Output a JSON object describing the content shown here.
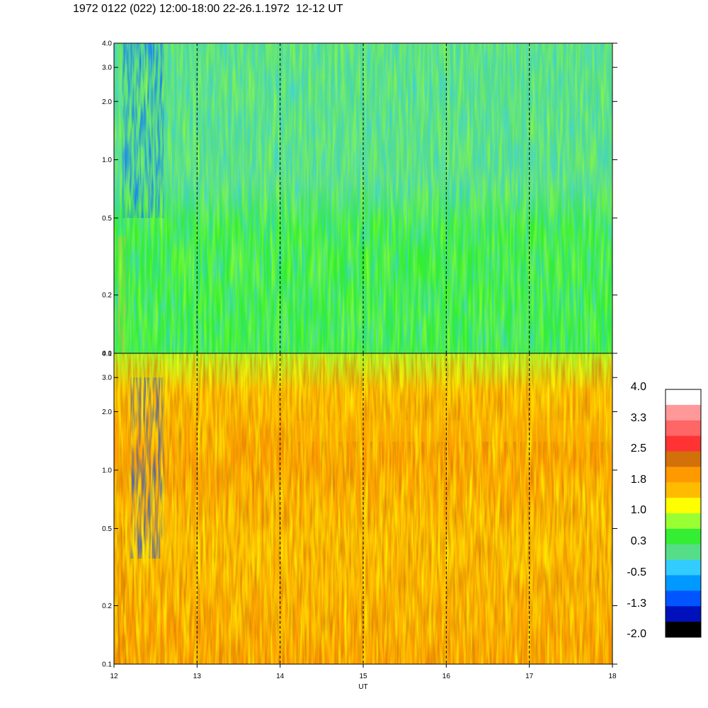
{
  "title": "1972 0122 (022) 12:00-18:00 22-26.1.1972  12-12 UT",
  "chart_data": [
    {
      "type": "heatmap",
      "panel": "upper",
      "title": "",
      "xlabel": "",
      "ylabel": "",
      "xlim": [
        12,
        18
      ],
      "ylim": [
        0.1,
        4.0
      ],
      "yscale": "log",
      "ytick_labels": [
        "0.1",
        "0.2",
        "0.5",
        "1.0",
        "2.0",
        "3.0",
        "4.0"
      ],
      "yticks": [
        0.1,
        0.2,
        0.5,
        1.0,
        2.0,
        3.0,
        4.0
      ],
      "vertical_dashed_lines": [
        13,
        14,
        15,
        16,
        17
      ],
      "dominant_level": 0.3,
      "notable_features": [
        {
          "x_range": [
            12.1,
            12.6
          ],
          "y_range": [
            0.5,
            4.0
          ],
          "level": -1.3
        },
        {
          "x_range": [
            12.05,
            12.15
          ],
          "y_range": [
            0.1,
            0.4
          ],
          "level": 1.8
        }
      ]
    },
    {
      "type": "heatmap",
      "panel": "lower",
      "title": "",
      "xlabel": "UT",
      "ylabel": "",
      "xlim": [
        12,
        18
      ],
      "ylim": [
        0.1,
        4.0
      ],
      "yscale": "log",
      "xtick_labels": [
        "12",
        "13",
        "14",
        "15",
        "16",
        "17",
        "18"
      ],
      "xticks": [
        12,
        13,
        14,
        15,
        16,
        17,
        18
      ],
      "ytick_labels": [
        "0.1",
        "0.2",
        "0.5",
        "1.0",
        "2.0",
        "3.0",
        "4.0"
      ],
      "yticks": [
        0.1,
        0.2,
        0.5,
        1.0,
        2.0,
        3.0,
        4.0
      ],
      "vertical_dashed_lines": [
        13,
        14,
        15,
        16,
        17
      ],
      "dominant_level": 1.8,
      "notable_features": [
        {
          "x_range": [
            12.2,
            12.6
          ],
          "y_range": [
            0.35,
            3.0
          ],
          "level": -1.3
        },
        {
          "x_range": [
            12.03,
            12.15
          ],
          "y_range": [
            0.1,
            0.6
          ],
          "level": 2.5
        },
        {
          "x_range": [
            14.2,
            18.0
          ],
          "y_range": [
            1.4,
            1.8
          ],
          "level": 1.8
        }
      ]
    }
  ],
  "colorbar": {
    "labels": [
      "4.0",
      "3.3",
      "2.5",
      "1.8",
      "1.0",
      "0.3",
      "-0.5",
      "-1.3",
      "-2.0"
    ],
    "colors": [
      "#ffffff",
      "#ff9999",
      "#ff6666",
      "#ff3333",
      "#d2700a",
      "#ff9900",
      "#ffbb00",
      "#ffff00",
      "#99ff33",
      "#33ee33",
      "#55dd88",
      "#33ccff",
      "#0099ff",
      "#0055ff",
      "#0011bb",
      "#000000"
    ]
  }
}
